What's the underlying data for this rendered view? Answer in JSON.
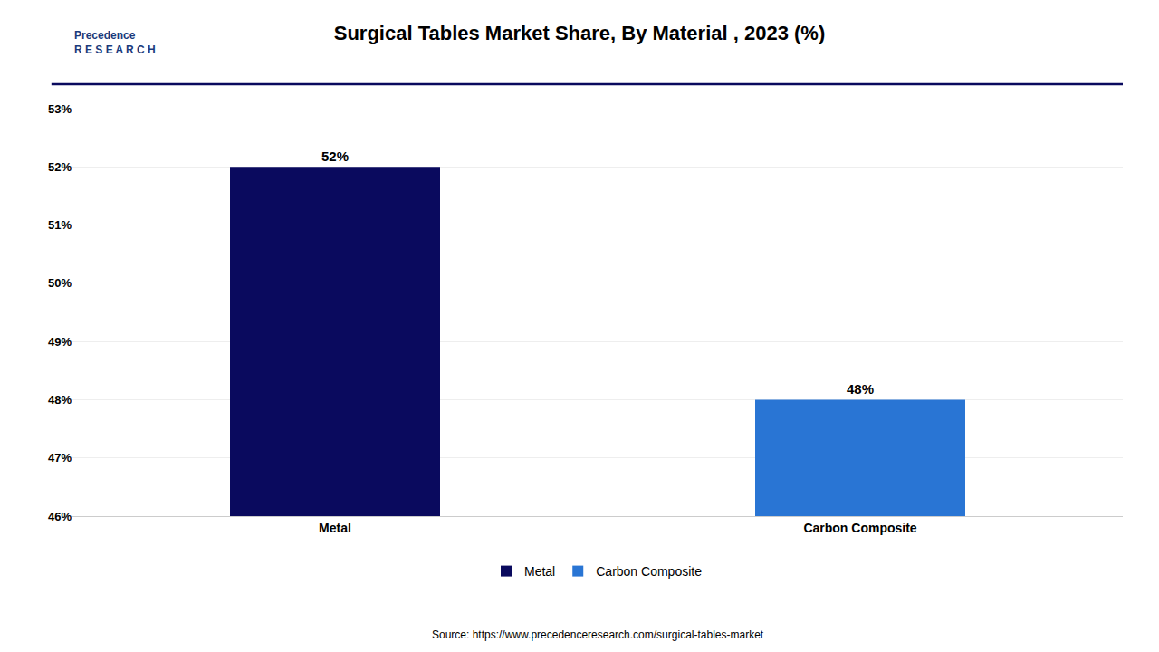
{
  "chart_data": {
    "type": "bar",
    "title": "Surgical Tables Market Share, By Material , 2023 (%)",
    "categories": [
      "Metal",
      "Carbon Composite"
    ],
    "series": [
      {
        "name": "Metal",
        "color": "#0a0a5e",
        "values": [
          52,
          null
        ],
        "value_labels": [
          "52%",
          null
        ]
      },
      {
        "name": "Carbon Composite",
        "color": "#2975d4",
        "values": [
          null,
          48
        ],
        "value_labels": [
          null,
          "48%"
        ]
      }
    ],
    "ylim": [
      46,
      53
    ],
    "yticks": [
      {
        "value": 46,
        "label": "46%"
      },
      {
        "value": 47,
        "label": "47%"
      },
      {
        "value": 48,
        "label": "48%"
      },
      {
        "value": 49,
        "label": "49%"
      },
      {
        "value": 50,
        "label": "50%"
      },
      {
        "value": 51,
        "label": "51%"
      },
      {
        "value": 52,
        "label": "52%"
      },
      {
        "value": 53,
        "label": "53%"
      }
    ],
    "grid": true,
    "legend": "bottom",
    "data_labels": true,
    "annotations": [
      "Source: https://www.precedenceresearch.com/surgical-tables-market",
      "Precedence\nR E S E A R C H"
    ]
  }
}
